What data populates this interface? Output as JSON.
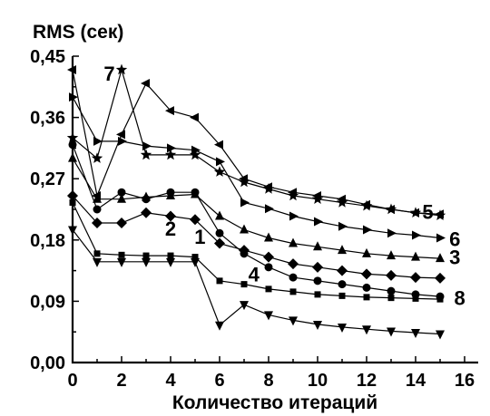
{
  "chart_data": {
    "type": "line",
    "ylabel": "RMS (сек)",
    "xlabel": "Количество итераций",
    "xlim": [
      0,
      16
    ],
    "ylim": [
      0,
      0.45
    ],
    "x_ticks": [
      "0",
      "2",
      "4",
      "6",
      "8",
      "10",
      "12",
      "14",
      "16"
    ],
    "y_ticks": [
      "0,00",
      "0,09",
      "0,18",
      "0,27",
      "0,36",
      "0,45"
    ],
    "grid": false,
    "x": [
      0,
      1,
      2,
      3,
      4,
      5,
      6,
      7,
      8,
      9,
      10,
      11,
      12,
      13,
      14,
      15
    ],
    "series": [
      {
        "name": "1",
        "marker": "square-small",
        "values": [
          0.235,
          0.16,
          0.158,
          0.157,
          0.157,
          0.155,
          0.12,
          0.115,
          0.108,
          0.104,
          0.1,
          0.098,
          0.096,
          0.095,
          0.094,
          0.093
        ]
      },
      {
        "name": "2",
        "marker": "diamond",
        "values": [
          0.245,
          0.205,
          0.205,
          0.22,
          0.215,
          0.21,
          0.175,
          0.165,
          0.155,
          0.145,
          0.14,
          0.135,
          0.13,
          0.128,
          0.125,
          0.124
        ]
      },
      {
        "name": "3",
        "marker": "triangle-up",
        "values": [
          0.3,
          0.24,
          0.24,
          0.243,
          0.245,
          0.247,
          0.215,
          0.195,
          0.183,
          0.175,
          0.17,
          0.165,
          0.16,
          0.157,
          0.155,
          0.153
        ]
      },
      {
        "name": "4",
        "marker": "triangle-down",
        "values": [
          0.195,
          0.148,
          0.148,
          0.148,
          0.148,
          0.148,
          0.055,
          0.085,
          0.07,
          0.062,
          0.056,
          0.052,
          0.049,
          0.046,
          0.044,
          0.042
        ]
      },
      {
        "name": "5",
        "marker": "triangle-left",
        "values": [
          0.43,
          0.245,
          0.335,
          0.41,
          0.37,
          0.36,
          0.32,
          0.27,
          0.258,
          0.25,
          0.245,
          0.24,
          0.232,
          0.225,
          0.22,
          0.218
        ]
      },
      {
        "name": "6",
        "marker": "triangle-right",
        "values": [
          0.39,
          0.325,
          0.325,
          0.318,
          0.315,
          0.312,
          0.295,
          0.235,
          0.226,
          0.215,
          0.207,
          0.2,
          0.195,
          0.19,
          0.187,
          0.183
        ]
      },
      {
        "name": "7",
        "marker": "star",
        "values": [
          0.33,
          0.3,
          0.43,
          0.305,
          0.305,
          0.305,
          0.28,
          0.265,
          0.255,
          0.245,
          0.24,
          0.235,
          0.23,
          0.225,
          0.22,
          0.216
        ]
      },
      {
        "name": "8",
        "marker": "circle",
        "values": [
          0.32,
          0.225,
          0.25,
          0.24,
          0.25,
          0.25,
          0.19,
          0.16,
          0.14,
          0.125,
          0.12,
          0.115,
          0.11,
          0.105,
          0.1,
          0.097
        ]
      }
    ],
    "series_label_marks": [
      {
        "label": "1",
        "x": 5.2,
        "y": 0.185
      },
      {
        "label": "2",
        "x": 4.0,
        "y": 0.197
      },
      {
        "label": "3",
        "x": 15.6,
        "y": 0.155
      },
      {
        "label": "4",
        "x": 7.4,
        "y": 0.13
      },
      {
        "label": "5",
        "x": 14.5,
        "y": 0.222
      },
      {
        "label": "6",
        "x": 15.6,
        "y": 0.182
      },
      {
        "label": "7",
        "x": 1.5,
        "y": 0.425
      },
      {
        "label": "8",
        "x": 15.8,
        "y": 0.095
      }
    ]
  }
}
